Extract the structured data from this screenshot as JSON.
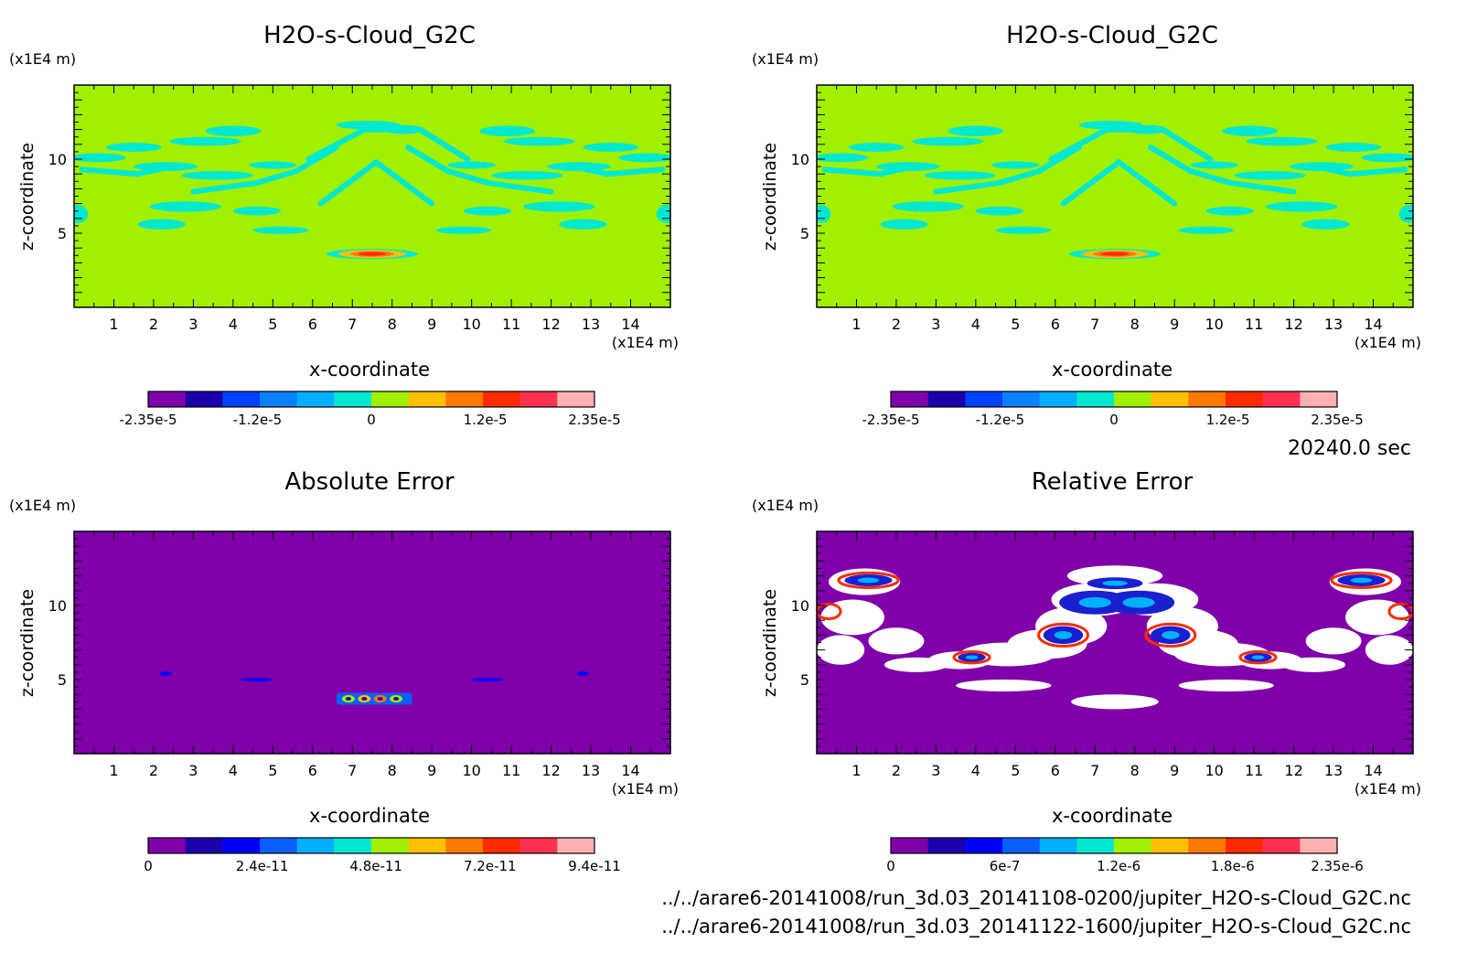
{
  "figure": {
    "time_label": "20240.0 sec",
    "files": [
      "../../arare6-20141008/run_3d.03_20141108-0200/jupiter_H2O-s-Cloud_G2C.nc",
      "../../arare6-20141008/run_3d.03_20141122-1600/jupiter_H2O-s-Cloud_G2C.nc"
    ]
  },
  "chart_data": [
    {
      "type": "heatmap",
      "title": "H2O-s-Cloud_G2C",
      "xlabel": "x-coordinate",
      "ylabel": "z-coordinate",
      "x_unit": "(x1E4 m)",
      "y_unit": "(x1E4 m)",
      "xlim": [
        0,
        15
      ],
      "ylim": [
        0,
        15
      ],
      "x_ticks": [
        1,
        2,
        3,
        4,
        5,
        6,
        7,
        8,
        9,
        10,
        11,
        12,
        13,
        14
      ],
      "y_ticks": [
        5,
        10
      ],
      "colorbar": {
        "colors": [
          "#7f00aa",
          "#1a00aa",
          "#0040ff",
          "#0a80ff",
          "#00b0ff",
          "#00e8d0",
          "#a0f000",
          "#ffc000",
          "#ff7800",
          "#ff2a00",
          "#ff3050",
          "#ffb0b0"
        ],
        "tick_labels": [
          "-2.35e-5",
          "-1.2e-5",
          "0",
          "1.2e-5",
          "2.35e-5"
        ],
        "tick_values": [
          -2.35e-05,
          -1.2e-05,
          0,
          1.2e-05,
          2.35e-05
        ],
        "range": [
          -2.35e-05,
          2.35e-05
        ]
      },
      "colors": {
        "background": "#a0f000",
        "features": "#00e8d0"
      }
    },
    {
      "type": "heatmap",
      "title": "H2O-s-Cloud_G2C",
      "xlabel": "x-coordinate",
      "ylabel": "z-coordinate",
      "x_unit": "(x1E4 m)",
      "y_unit": "(x1E4 m)",
      "xlim": [
        0,
        15
      ],
      "ylim": [
        0,
        15
      ],
      "x_ticks": [
        1,
        2,
        3,
        4,
        5,
        6,
        7,
        8,
        9,
        10,
        11,
        12,
        13,
        14
      ],
      "y_ticks": [
        5,
        10
      ],
      "colorbar": {
        "colors": [
          "#7f00aa",
          "#1a00aa",
          "#0040ff",
          "#0a80ff",
          "#00b0ff",
          "#00e8d0",
          "#a0f000",
          "#ffc000",
          "#ff7800",
          "#ff2a00",
          "#ff3050",
          "#ffb0b0"
        ],
        "tick_labels": [
          "-2.35e-5",
          "-1.2e-5",
          "0",
          "1.2e-5",
          "2.35e-5"
        ],
        "tick_values": [
          -2.35e-05,
          -1.2e-05,
          0,
          1.2e-05,
          2.35e-05
        ],
        "range": [
          -2.35e-05,
          2.35e-05
        ]
      },
      "colors": {
        "background": "#a0f000",
        "features": "#00e8d0"
      }
    },
    {
      "type": "heatmap",
      "title": "Absolute Error",
      "xlabel": "x-coordinate",
      "ylabel": "z-coordinate",
      "x_unit": "(x1E4 m)",
      "y_unit": "(x1E4 m)",
      "xlim": [
        0,
        15
      ],
      "ylim": [
        0,
        15
      ],
      "x_ticks": [
        1,
        2,
        3,
        4,
        5,
        6,
        7,
        8,
        9,
        10,
        11,
        12,
        13,
        14
      ],
      "y_ticks": [
        5,
        10
      ],
      "colorbar": {
        "colors": [
          "#7f00aa",
          "#1a00aa",
          "#0000ff",
          "#0a60ff",
          "#00b0ff",
          "#00e8d0",
          "#a0f000",
          "#ffc000",
          "#ff7800",
          "#ff2a00",
          "#ff3050",
          "#ffb0b0"
        ],
        "tick_labels": [
          "0",
          "2.4e-11",
          "4.8e-11",
          "7.2e-11",
          "9.4e-11"
        ],
        "tick_values": [
          0,
          2.4e-11,
          4.8e-11,
          7.2e-11,
          9.4e-11
        ],
        "range": [
          0,
          9.4e-11
        ]
      },
      "colors": {
        "background": "#7f00aa",
        "features": "#0040ff"
      }
    },
    {
      "type": "heatmap",
      "title": "Relative Error",
      "xlabel": "x-coordinate",
      "ylabel": "z-coordinate",
      "x_unit": "(x1E4 m)",
      "y_unit": "(x1E4 m)",
      "xlim": [
        0,
        15
      ],
      "ylim": [
        0,
        15
      ],
      "x_ticks": [
        1,
        2,
        3,
        4,
        5,
        6,
        7,
        8,
        9,
        10,
        11,
        12,
        13,
        14
      ],
      "y_ticks": [
        5,
        10
      ],
      "colorbar": {
        "colors": [
          "#7f00aa",
          "#1a00aa",
          "#0000ff",
          "#0a60ff",
          "#00b0ff",
          "#00e8d0",
          "#a0f000",
          "#ffc000",
          "#ff7800",
          "#ff2a00",
          "#ff3050",
          "#ffb0b0"
        ],
        "tick_labels": [
          "0",
          "6e-7",
          "1.2e-6",
          "1.8e-6",
          "2.35e-6"
        ],
        "tick_values": [
          0,
          6e-07,
          1.2e-06,
          1.8e-06,
          2.35e-06
        ],
        "range": [
          0,
          2.35e-06
        ]
      },
      "colors": {
        "background": "#7f00aa",
        "features": "#ffffff",
        "cores": "#1a20d0"
      }
    }
  ]
}
